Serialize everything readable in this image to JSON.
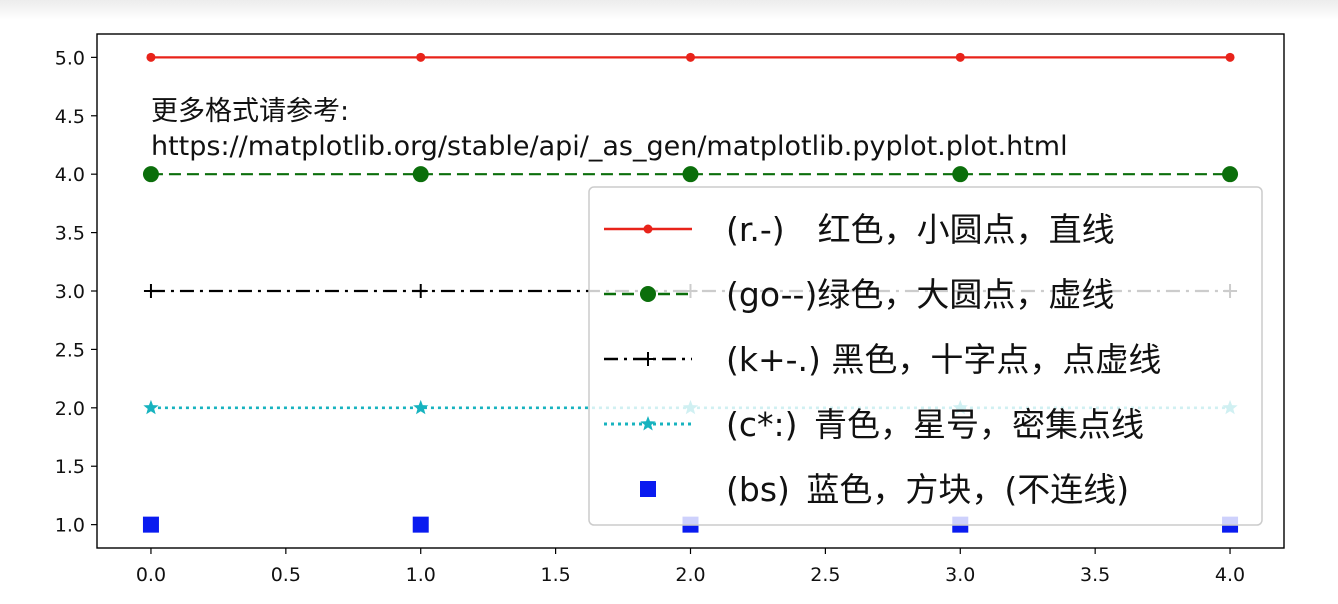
{
  "chart_data": {
    "type": "line",
    "title": "",
    "xlabel": "",
    "ylabel": "",
    "xlim": [
      -0.2,
      4.2
    ],
    "ylim": [
      0.8,
      5.2
    ],
    "xticks": [
      0.0,
      0.5,
      1.0,
      1.5,
      2.0,
      2.5,
      3.0,
      3.5,
      4.0
    ],
    "yticks": [
      1.0,
      1.5,
      2.0,
      2.5,
      3.0,
      3.5,
      4.0,
      4.5,
      5.0
    ],
    "xtick_labels": [
      "0.0",
      "0.5",
      "1.0",
      "1.5",
      "2.0",
      "2.5",
      "3.0",
      "3.5",
      "4.0"
    ],
    "ytick_labels": [
      "1.0",
      "1.5",
      "2.0",
      "2.5",
      "3.0",
      "3.5",
      "4.0",
      "4.5",
      "5.0"
    ],
    "grid": false,
    "legend_position": "lower-right",
    "x": [
      0,
      1,
      2,
      3,
      4
    ],
    "series": [
      {
        "name": "(r.-)　红色，小圆点，直线",
        "values": [
          5,
          5,
          5,
          5,
          5
        ],
        "color": "#e8231a",
        "style": "solid",
        "marker": "point"
      },
      {
        "name": "(go--)绿色，大圆点，虚线",
        "values": [
          4,
          4,
          4,
          4,
          4
        ],
        "color": "#0b6e0b",
        "style": "dashed",
        "marker": "circle"
      },
      {
        "name": "(k+-.) 黑色，十字点，点虚线",
        "values": [
          3,
          3,
          3,
          3,
          3
        ],
        "color": "#000000",
        "style": "dashdot",
        "marker": "plus"
      },
      {
        "name": "(c*:) 青色，星号，密集点线",
        "values": [
          2,
          2,
          2,
          2,
          2
        ],
        "color": "#17b3bf",
        "style": "dotted",
        "marker": "star"
      },
      {
        "name": "(bs) 蓝色，方块，(不连线)",
        "values": [
          1,
          1,
          1,
          1,
          1
        ],
        "color": "#0a1bf0",
        "style": "none",
        "marker": "square"
      }
    ],
    "annotations": [
      {
        "text": "更多格式请参考:",
        "x": 0.0,
        "y": 4.5
      },
      {
        "text": " https://matplotlib.org/stable/api/_as_gen/matplotlib.pyplot.plot.html",
        "x": 0.0,
        "y": 4.2
      }
    ]
  }
}
